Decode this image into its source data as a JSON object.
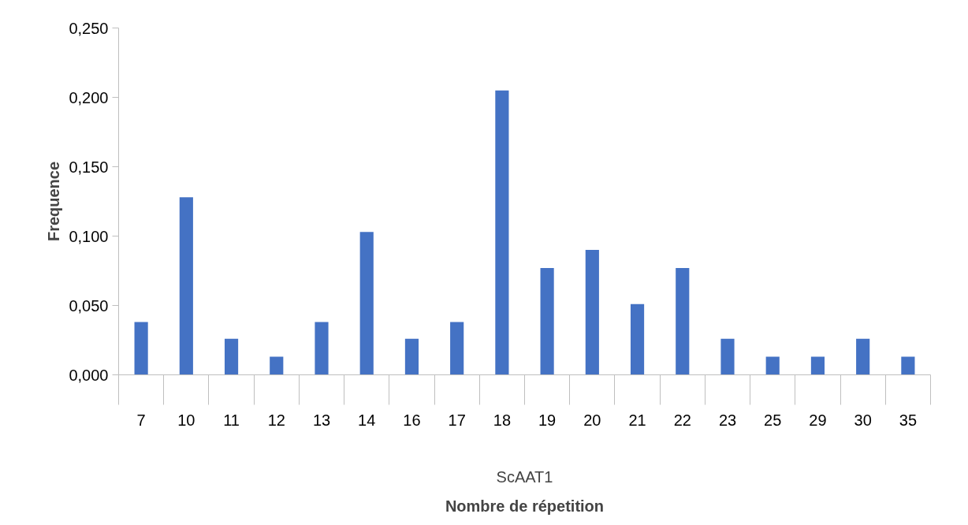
{
  "chart_data": {
    "type": "bar",
    "xlabel": "Nombre de répetition",
    "ylabel": "Frequence",
    "categories": [
      "7",
      "10",
      "11",
      "12",
      "13",
      "14",
      "16",
      "17",
      "18",
      "19",
      "20",
      "21",
      "22",
      "23",
      "25",
      "29",
      "30",
      "35"
    ],
    "values": [
      0.038,
      0.128,
      0.026,
      0.013,
      0.038,
      0.103,
      0.026,
      0.038,
      0.205,
      0.077,
      0.09,
      0.051,
      0.077,
      0.026,
      0.013,
      0.013,
      0.026,
      0.013
    ],
    "color": "#4472c4",
    "annotations": [
      "ScAAT1"
    ],
    "ylim": [
      0,
      0.25
    ],
    "yticks": [
      {
        "value": 0,
        "label": "0,000"
      },
      {
        "value": 0.05,
        "label": "0,050"
      },
      {
        "value": 0.1,
        "label": "0,100"
      },
      {
        "value": 0.15,
        "label": "0,150"
      },
      {
        "value": 0.2,
        "label": "0,200"
      },
      {
        "value": 0.25,
        "label": "0,250"
      }
    ],
    "grid": false
  }
}
